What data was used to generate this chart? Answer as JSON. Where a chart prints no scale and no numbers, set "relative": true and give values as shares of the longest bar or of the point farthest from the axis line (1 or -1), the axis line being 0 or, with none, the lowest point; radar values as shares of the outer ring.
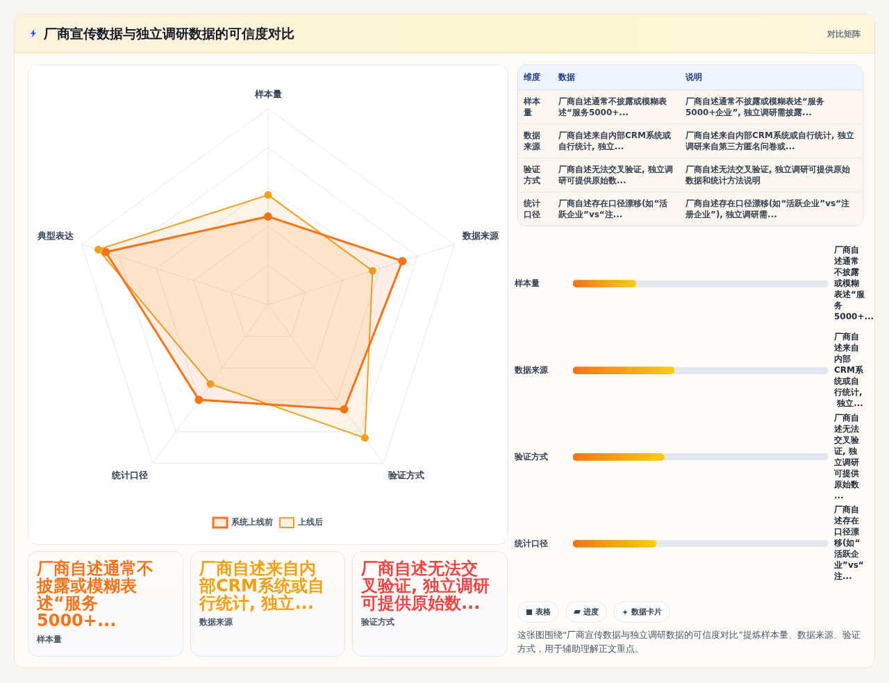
{
  "chart_data": [
    {
      "type": "other",
      "title": "厂商宣传数据与独立调研数据的可信度对比",
      "annotations": [
        "对比矩阵"
      ]
    },
    {
      "type": "radar",
      "categories": [
        "样本量",
        "数据来源",
        "验证方式",
        "统计口径",
        "典型表达"
      ],
      "relative": true,
      "legend": "bottom",
      "marker": "circle",
      "series": [
        {
          "name": "系统上线前",
          "color": "#f97316",
          "values": [
            0.45,
            0.72,
            0.66,
            0.6,
            0.87
          ]
        },
        {
          "name": "上线后",
          "color": "#f0a01e",
          "values": [
            0.56,
            0.56,
            0.84,
            0.5,
            0.91
          ]
        }
      ]
    },
    {
      "type": "other",
      "annotations": [
        "维度",
        "数据",
        "说明",
        "样本量",
        "厂商自述通常不披露或模糊表述“服务5000+...",
        "厂商自述通常不披露或模糊表述“服务5000+企业”, 独立调研需披露...",
        "数据来源",
        "厂商自述来自内部CRM系统或自行统计, 独立...",
        "厂商自述来自内部CRM系统或自行统计, 独立调研来自第三方匿名问卷或...",
        "验证方式",
        "厂商自述无法交叉验证, 独立调研可提供原始数...",
        "厂商自述无法交叉验证, 独立调研可提供原始数据和统计方法说明",
        "统计口径",
        "厂商自述存在口径漂移(如“活跃企业”vs“注...",
        "厂商自述存在口径漂移(如“活跃企业”vs“注册企业”), 独立调研需..."
      ]
    },
    {
      "type": "bar",
      "orientation": "horizontal",
      "relative": true,
      "categories": [
        "样本量",
        "数据来源",
        "验证方式",
        "统计口径"
      ],
      "values": [
        0.62,
        1,
        0.9,
        0.82
      ],
      "color": "#f97316",
      "annotations": [
        "厂商自述通常不披露或模糊表述“服务5000+...",
        "厂商自述来自内部CRM系统或自行统计, 独立...",
        "厂商自述无法交叉验证, 独立调研可提供原始数...",
        "厂商自述存在口径漂移(如“活跃企业”vs“注..."
      ]
    },
    {
      "type": "other",
      "annotations": [
        "厂商自述通常不披露或模糊表述“服务5000+...",
        "样本量",
        "厂商自述来自内部CRM系统或自行统计, 独立...",
        "数据来源",
        "厂商自述无法交叉验证, 独立调研可提供原始数...",
        "验证方式"
      ]
    },
    {
      "type": "other",
      "annotations": [
        "表格",
        "进度",
        "数据卡片",
        "这张图围绕“厂商宣传数据与独立调研数据的可信度对比”提炼样本量、数据来源、验证方式，用于辅助理解正文重点。"
      ]
    }
  ]
}
